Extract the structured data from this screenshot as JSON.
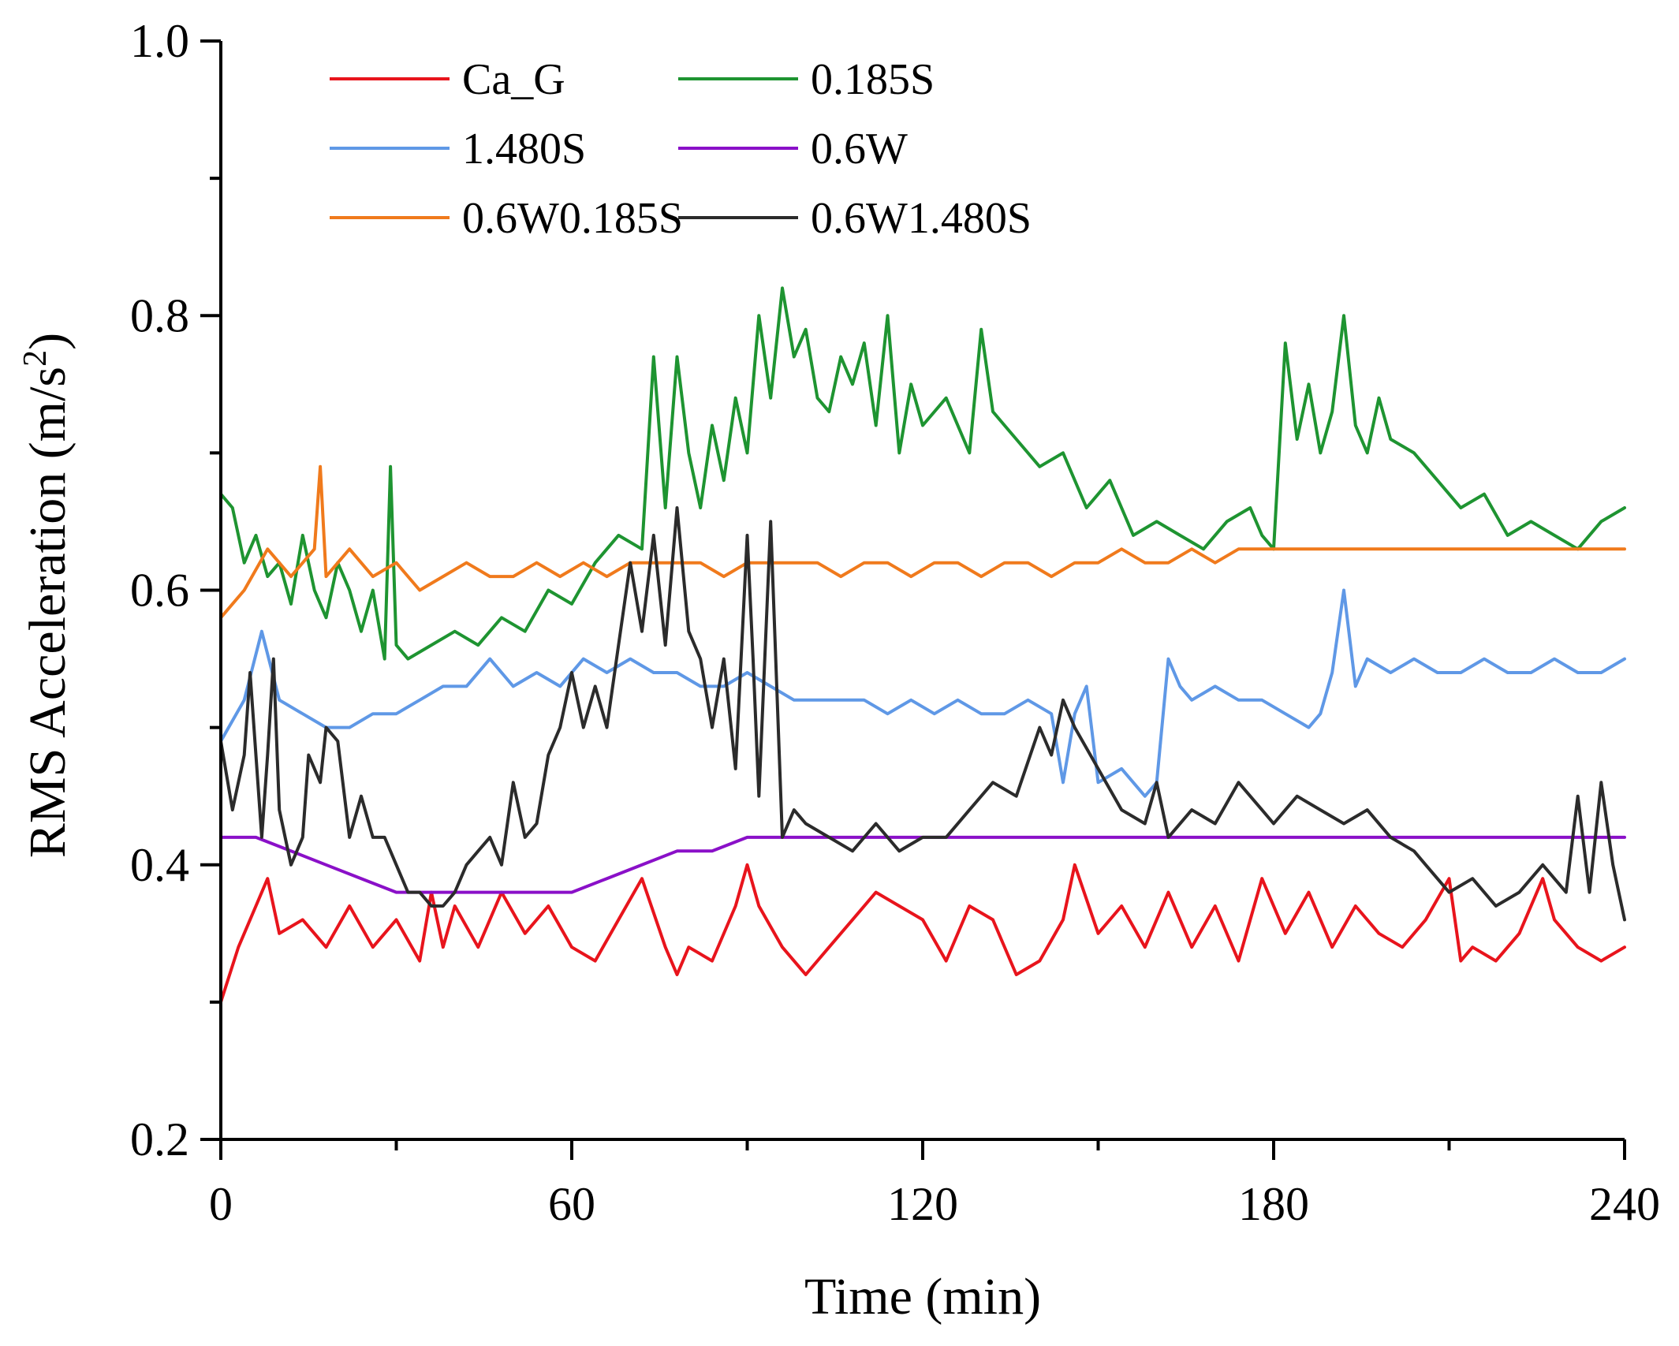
{
  "chart_data": {
    "type": "line",
    "title": "",
    "xlabel": "Time (min)",
    "ylabel_main": "RMS Acceleration (m/s",
    "ylabel_sup": "2",
    "ylabel_close": ")",
    "xlim": [
      0,
      240
    ],
    "ylim": [
      0.2,
      1.0
    ],
    "xticks": [
      0,
      60,
      120,
      180,
      240
    ],
    "xtick_labels": [
      "0",
      "60",
      "120",
      "180",
      "240"
    ],
    "yticks": [
      0.2,
      0.4,
      0.6,
      0.8,
      1.0
    ],
    "ytick_labels": [
      "0.2",
      "0.4",
      "0.6",
      "0.8",
      "1.0"
    ],
    "grid": false,
    "legend_placement": "top-left",
    "series": [
      {
        "name": "Ca_G",
        "color": "#e8141c",
        "x": [
          0,
          3,
          6,
          8,
          10,
          14,
          18,
          22,
          26,
          30,
          34,
          36,
          38,
          40,
          44,
          48,
          52,
          56,
          60,
          64,
          68,
          72,
          76,
          78,
          80,
          84,
          88,
          90,
          92,
          96,
          100,
          104,
          108,
          112,
          116,
          120,
          124,
          128,
          132,
          136,
          140,
          144,
          146,
          150,
          154,
          158,
          162,
          166,
          170,
          174,
          178,
          182,
          186,
          190,
          194,
          198,
          202,
          206,
          210,
          212,
          214,
          218,
          222,
          226,
          228,
          232,
          236,
          240
        ],
        "y": [
          0.3,
          0.34,
          0.37,
          0.39,
          0.35,
          0.36,
          0.34,
          0.37,
          0.34,
          0.36,
          0.33,
          0.38,
          0.34,
          0.37,
          0.34,
          0.38,
          0.35,
          0.37,
          0.34,
          0.33,
          0.36,
          0.39,
          0.34,
          0.32,
          0.34,
          0.33,
          0.37,
          0.4,
          0.37,
          0.34,
          0.32,
          0.34,
          0.36,
          0.38,
          0.37,
          0.36,
          0.33,
          0.37,
          0.36,
          0.32,
          0.33,
          0.36,
          0.4,
          0.35,
          0.37,
          0.34,
          0.38,
          0.34,
          0.37,
          0.33,
          0.39,
          0.35,
          0.38,
          0.34,
          0.37,
          0.35,
          0.34,
          0.36,
          0.39,
          0.33,
          0.34,
          0.33,
          0.35,
          0.39,
          0.36,
          0.34,
          0.33,
          0.34
        ]
      },
      {
        "name": "0.185S",
        "color": "#1e9431",
        "x": [
          0,
          2,
          4,
          6,
          8,
          10,
          12,
          14,
          16,
          18,
          20,
          22,
          24,
          26,
          28,
          29,
          30,
          32,
          36,
          40,
          44,
          48,
          52,
          56,
          60,
          64,
          68,
          72,
          74,
          76,
          78,
          80,
          82,
          84,
          86,
          88,
          90,
          92,
          94,
          96,
          98,
          100,
          102,
          104,
          106,
          108,
          110,
          112,
          114,
          116,
          118,
          120,
          124,
          128,
          130,
          132,
          136,
          140,
          144,
          148,
          152,
          156,
          160,
          164,
          168,
          172,
          176,
          178,
          180,
          182,
          184,
          186,
          188,
          190,
          192,
          194,
          196,
          198,
          200,
          204,
          208,
          212,
          216,
          220,
          224,
          228,
          232,
          236,
          240
        ],
        "y": [
          0.67,
          0.66,
          0.62,
          0.64,
          0.61,
          0.62,
          0.59,
          0.64,
          0.6,
          0.58,
          0.62,
          0.6,
          0.57,
          0.6,
          0.55,
          0.69,
          0.56,
          0.55,
          0.56,
          0.57,
          0.56,
          0.58,
          0.57,
          0.6,
          0.59,
          0.62,
          0.64,
          0.63,
          0.77,
          0.66,
          0.77,
          0.7,
          0.66,
          0.72,
          0.68,
          0.74,
          0.7,
          0.8,
          0.74,
          0.82,
          0.77,
          0.79,
          0.74,
          0.73,
          0.77,
          0.75,
          0.78,
          0.72,
          0.8,
          0.7,
          0.75,
          0.72,
          0.74,
          0.7,
          0.79,
          0.73,
          0.71,
          0.69,
          0.7,
          0.66,
          0.68,
          0.64,
          0.65,
          0.64,
          0.63,
          0.65,
          0.66,
          0.64,
          0.63,
          0.78,
          0.71,
          0.75,
          0.7,
          0.73,
          0.8,
          0.72,
          0.7,
          0.74,
          0.71,
          0.7,
          0.68,
          0.66,
          0.67,
          0.64,
          0.65,
          0.64,
          0.63,
          0.65,
          0.66
        ]
      },
      {
        "name": "1.480S",
        "color": "#5f98e6",
        "x": [
          0,
          4,
          7,
          10,
          14,
          18,
          22,
          26,
          30,
          34,
          38,
          42,
          46,
          50,
          54,
          58,
          62,
          66,
          70,
          74,
          78,
          82,
          86,
          90,
          94,
          98,
          102,
          106,
          110,
          114,
          118,
          122,
          126,
          130,
          134,
          138,
          142,
          144,
          146,
          148,
          150,
          154,
          158,
          160,
          162,
          164,
          166,
          170,
          174,
          178,
          182,
          186,
          188,
          190,
          192,
          194,
          196,
          200,
          204,
          208,
          212,
          216,
          220,
          224,
          228,
          232,
          236,
          240
        ],
        "y": [
          0.49,
          0.52,
          0.57,
          0.52,
          0.51,
          0.5,
          0.5,
          0.51,
          0.51,
          0.52,
          0.53,
          0.53,
          0.55,
          0.53,
          0.54,
          0.53,
          0.55,
          0.54,
          0.55,
          0.54,
          0.54,
          0.53,
          0.53,
          0.54,
          0.53,
          0.52,
          0.52,
          0.52,
          0.52,
          0.51,
          0.52,
          0.51,
          0.52,
          0.51,
          0.51,
          0.52,
          0.51,
          0.46,
          0.51,
          0.53,
          0.46,
          0.47,
          0.45,
          0.46,
          0.55,
          0.53,
          0.52,
          0.53,
          0.52,
          0.52,
          0.51,
          0.5,
          0.51,
          0.54,
          0.6,
          0.53,
          0.55,
          0.54,
          0.55,
          0.54,
          0.54,
          0.55,
          0.54,
          0.54,
          0.55,
          0.54,
          0.54,
          0.55
        ]
      },
      {
        "name": "0.6W",
        "color": "#8a10c8",
        "x": [
          0,
          6,
          12,
          18,
          24,
          30,
          36,
          42,
          48,
          54,
          60,
          66,
          72,
          78,
          84,
          90,
          96,
          102,
          108,
          114,
          120,
          126,
          132,
          138,
          144,
          150,
          156,
          162,
          168,
          174,
          180,
          186,
          192,
          198,
          204,
          210,
          216,
          222,
          228,
          234,
          240
        ],
        "y": [
          0.42,
          0.42,
          0.41,
          0.4,
          0.39,
          0.38,
          0.38,
          0.38,
          0.38,
          0.38,
          0.38,
          0.39,
          0.4,
          0.41,
          0.41,
          0.42,
          0.42,
          0.42,
          0.42,
          0.42,
          0.42,
          0.42,
          0.42,
          0.42,
          0.42,
          0.42,
          0.42,
          0.42,
          0.42,
          0.42,
          0.42,
          0.42,
          0.42,
          0.42,
          0.42,
          0.42,
          0.42,
          0.42,
          0.42,
          0.42,
          0.42
        ]
      },
      {
        "name": "0.6W0.185S",
        "color": "#f07a1c",
        "x": [
          0,
          4,
          8,
          12,
          16,
          17,
          18,
          22,
          26,
          30,
          34,
          38,
          42,
          46,
          50,
          54,
          58,
          62,
          66,
          70,
          74,
          78,
          82,
          86,
          90,
          94,
          98,
          102,
          106,
          110,
          114,
          118,
          122,
          126,
          130,
          134,
          138,
          142,
          146,
          150,
          154,
          158,
          162,
          166,
          170,
          174,
          178,
          182,
          186,
          190,
          194,
          198,
          202,
          206,
          210,
          214,
          218,
          222,
          226,
          230,
          234,
          240
        ],
        "y": [
          0.58,
          0.6,
          0.63,
          0.61,
          0.63,
          0.69,
          0.61,
          0.63,
          0.61,
          0.62,
          0.6,
          0.61,
          0.62,
          0.61,
          0.61,
          0.62,
          0.61,
          0.62,
          0.61,
          0.62,
          0.62,
          0.62,
          0.62,
          0.61,
          0.62,
          0.62,
          0.62,
          0.62,
          0.61,
          0.62,
          0.62,
          0.61,
          0.62,
          0.62,
          0.61,
          0.62,
          0.62,
          0.61,
          0.62,
          0.62,
          0.63,
          0.62,
          0.62,
          0.63,
          0.62,
          0.63,
          0.63,
          0.63,
          0.63,
          0.63,
          0.63,
          0.63,
          0.63,
          0.63,
          0.63,
          0.63,
          0.63,
          0.63,
          0.63,
          0.63,
          0.63,
          0.63
        ]
      },
      {
        "name": "0.6W1.480S",
        "color": "#2b2b2b",
        "x": [
          0,
          2,
          4,
          5,
          7,
          8,
          9,
          10,
          12,
          14,
          15,
          17,
          18,
          20,
          22,
          24,
          26,
          28,
          30,
          32,
          34,
          36,
          38,
          40,
          42,
          44,
          46,
          48,
          50,
          52,
          54,
          56,
          58,
          60,
          62,
          64,
          66,
          68,
          70,
          72,
          74,
          76,
          78,
          80,
          82,
          84,
          86,
          88,
          90,
          91,
          92,
          94,
          96,
          98,
          100,
          104,
          108,
          112,
          116,
          120,
          124,
          128,
          132,
          136,
          140,
          142,
          144,
          146,
          150,
          154,
          158,
          160,
          162,
          166,
          170,
          174,
          178,
          180,
          184,
          188,
          192,
          196,
          200,
          204,
          206,
          210,
          214,
          218,
          222,
          226,
          230,
          232,
          234,
          236,
          238,
          240
        ],
        "y": [
          0.49,
          0.44,
          0.48,
          0.54,
          0.42,
          0.48,
          0.55,
          0.44,
          0.4,
          0.42,
          0.48,
          0.46,
          0.5,
          0.49,
          0.42,
          0.45,
          0.42,
          0.42,
          0.4,
          0.38,
          0.38,
          0.37,
          0.37,
          0.38,
          0.4,
          0.41,
          0.42,
          0.4,
          0.46,
          0.42,
          0.43,
          0.48,
          0.5,
          0.54,
          0.5,
          0.53,
          0.5,
          0.56,
          0.62,
          0.57,
          0.64,
          0.56,
          0.66,
          0.57,
          0.55,
          0.5,
          0.55,
          0.47,
          0.64,
          0.55,
          0.45,
          0.65,
          0.42,
          0.44,
          0.43,
          0.42,
          0.41,
          0.43,
          0.41,
          0.42,
          0.42,
          0.44,
          0.46,
          0.45,
          0.5,
          0.48,
          0.52,
          0.5,
          0.47,
          0.44,
          0.43,
          0.46,
          0.42,
          0.44,
          0.43,
          0.46,
          0.44,
          0.43,
          0.45,
          0.44,
          0.43,
          0.44,
          0.42,
          0.41,
          0.4,
          0.38,
          0.39,
          0.37,
          0.38,
          0.4,
          0.38,
          0.45,
          0.38,
          0.46,
          0.4,
          0.36
        ]
      }
    ]
  }
}
